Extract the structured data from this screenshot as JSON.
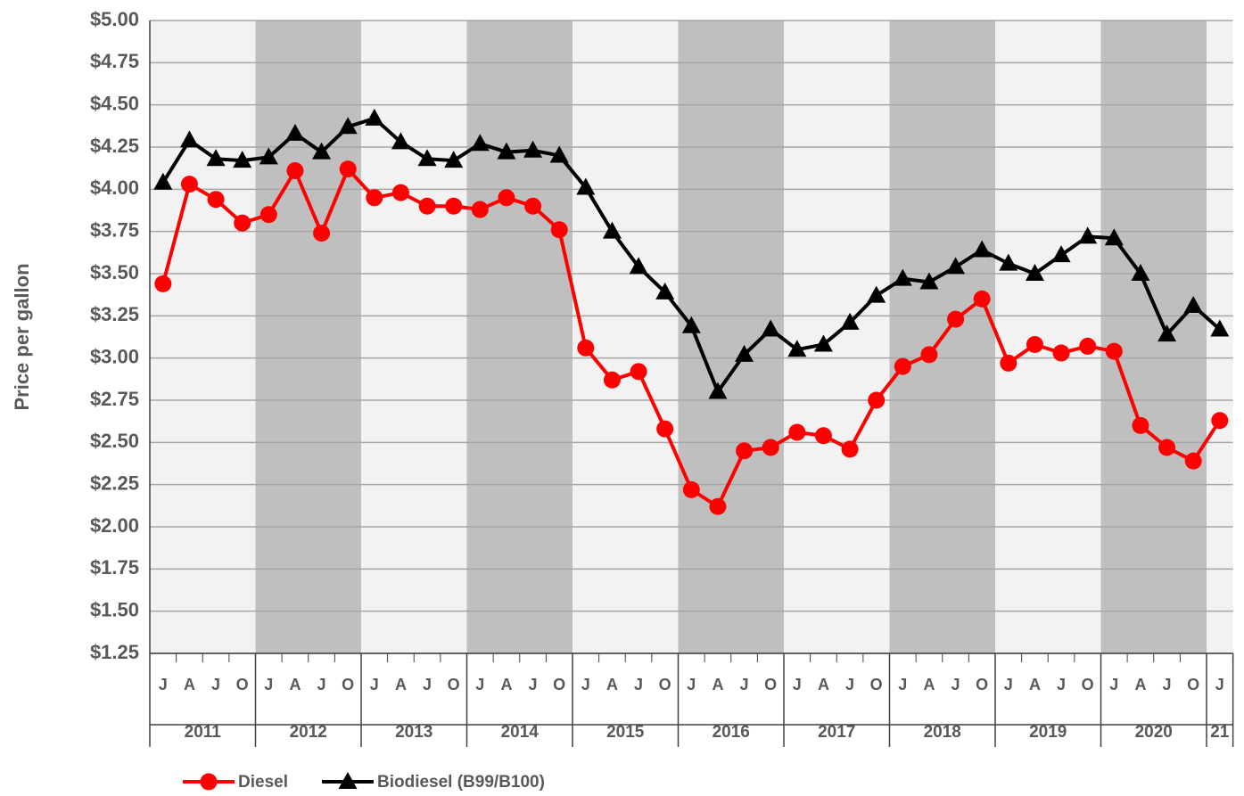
{
  "chart_data": {
    "type": "line",
    "y_label": "Price per gallon",
    "categories": [
      "J",
      "A",
      "J",
      "O",
      "J",
      "A",
      "J",
      "O",
      "J",
      "A",
      "J",
      "O",
      "J",
      "A",
      "J",
      "O",
      "J",
      "A",
      "J",
      "O",
      "J",
      "A",
      "J",
      "O",
      "J",
      "A",
      "J",
      "O",
      "J",
      "A",
      "J",
      "O",
      "J",
      "A",
      "J",
      "O",
      "J",
      "A",
      "J",
      "O",
      "J"
    ],
    "years": [
      "2011",
      "2012",
      "2013",
      "2014",
      "2015",
      "2016",
      "2017",
      "2018",
      "2019",
      "2020",
      "21"
    ],
    "band_colors": [
      "#f2f2f2",
      "#bfbfbf"
    ],
    "series": [
      {
        "name": "Diesel",
        "color": "#ff0000",
        "marker": "circle",
        "values": [
          3.44,
          4.03,
          3.94,
          3.8,
          3.85,
          4.11,
          3.74,
          4.12,
          3.95,
          3.98,
          3.9,
          3.9,
          3.88,
          3.95,
          3.9,
          3.76,
          3.06,
          2.87,
          2.92,
          2.58,
          2.22,
          2.12,
          2.45,
          2.47,
          2.56,
          2.54,
          2.46,
          2.75,
          2.95,
          3.02,
          3.23,
          3.35,
          2.97,
          3.08,
          3.03,
          3.07,
          3.04,
          2.6,
          2.47,
          2.39,
          2.63
        ]
      },
      {
        "name": "Biodiesel (B99/B100)",
        "color": "#000000",
        "marker": "triangle",
        "values": [
          4.04,
          4.29,
          4.18,
          4.17,
          4.19,
          4.33,
          4.22,
          4.37,
          4.42,
          4.28,
          4.18,
          4.17,
          4.27,
          4.22,
          4.23,
          4.2,
          4.01,
          3.75,
          3.54,
          3.39,
          3.19,
          2.8,
          3.02,
          3.17,
          3.05,
          3.08,
          3.21,
          3.37,
          3.47,
          3.45,
          3.54,
          3.64,
          3.56,
          3.5,
          3.61,
          3.72,
          3.71,
          3.5,
          3.14,
          3.31,
          3.17
        ]
      }
    ],
    "ylim": [
      1.25,
      5.0
    ],
    "yticks": [
      {
        "value": 1.25,
        "label": "$1.25"
      },
      {
        "value": 1.5,
        "label": "$1.50"
      },
      {
        "value": 1.75,
        "label": "$1.75"
      },
      {
        "value": 2.0,
        "label": "$2.00"
      },
      {
        "value": 2.25,
        "label": "$2.25"
      },
      {
        "value": 2.5,
        "label": "$2.50"
      },
      {
        "value": 2.75,
        "label": "$2.75"
      },
      {
        "value": 3.0,
        "label": "$3.00"
      },
      {
        "value": 3.25,
        "label": "$3.25"
      },
      {
        "value": 3.5,
        "label": "$3.50"
      },
      {
        "value": 3.75,
        "label": "$3.75"
      },
      {
        "value": 4.0,
        "label": "$4.00"
      },
      {
        "value": 4.25,
        "label": "$4.25"
      },
      {
        "value": 4.5,
        "label": "$4.50"
      },
      {
        "value": 4.75,
        "label": "$4.75"
      },
      {
        "value": 5.0,
        "label": "$5.00"
      }
    ],
    "grid": true,
    "legend": "bottom"
  }
}
